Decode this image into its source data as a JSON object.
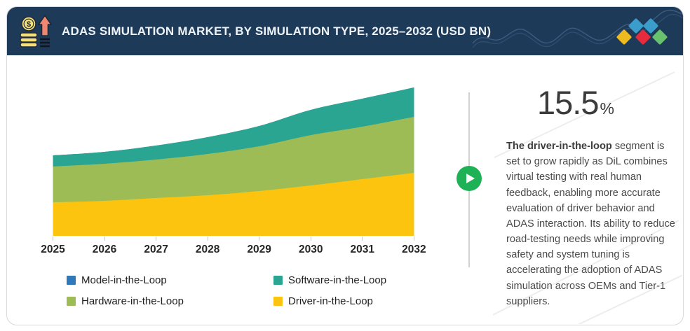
{
  "header": {
    "title": "ADAS SIMULATION MARKET, BY SIMULATION TYPE, 2025–2032 (USD BN)",
    "icon": "money-growth-icon",
    "background_color": "#1e3a59"
  },
  "brand": {
    "diamond_colors": [
      "#edba1f",
      "#3b9dcb",
      "#e52b3c",
      "#3b9dcb",
      "#69c06d"
    ]
  },
  "chart_data": {
    "type": "area",
    "stacked": true,
    "title": "ADAS Simulation Market, by Simulation Type, 2025-2032 (USD BN)",
    "categories": [
      "2025",
      "2026",
      "2027",
      "2028",
      "2029",
      "2030",
      "2031",
      "2032"
    ],
    "xlabel": "",
    "ylabel": "",
    "y_axis": "none shown; values estimated from pixel heights in relative units",
    "grid": false,
    "legend_position": "bottom",
    "series": [
      {
        "name": "Driver-in-the-Loop",
        "color": "#fdc40f",
        "values": [
          48,
          50,
          54,
          58,
          64,
          72,
          81,
          90
        ]
      },
      {
        "name": "Hardware-in-the-Loop",
        "color": "#9ebc56",
        "values": [
          51,
          53,
          55,
          59,
          64,
          72,
          75,
          80
        ]
      },
      {
        "name": "Software-in-the-Loop",
        "color": "#2aa592",
        "values": [
          16,
          17,
          20,
          24,
          29,
          36,
          40,
          42
        ]
      },
      {
        "name": "Model-in-the-Loop",
        "color": "#2f79ba",
        "values": [
          0,
          0,
          0,
          0,
          0,
          0,
          0,
          0
        ],
        "note": "listed in legend but band too thin to be visible in plot"
      }
    ]
  },
  "legend": {
    "items": [
      {
        "label": "Model-in-the-Loop",
        "color": "#2f79ba"
      },
      {
        "label": "Software-in-the-Loop",
        "color": "#2aa592"
      },
      {
        "label": "Hardware-in-the-Loop",
        "color": "#9ebc56"
      },
      {
        "label": "Driver-in-the-Loop",
        "color": "#fdc40f"
      }
    ]
  },
  "stat": {
    "value": "15.5",
    "suffix": "%"
  },
  "insight": {
    "bold": "The driver-in-the-loop",
    "rest": " segment is set to grow rapidly as DiL combines virtual testing with real human feedback, enabling more accurate evaluation of driver behavior and ADAS interaction. Its ability to reduce road-testing needs while improving safety and system tuning is accelerating the adoption of ADAS simulation across OEMs and Tier-1 suppliers."
  },
  "colors": {
    "play_button": "#1fb155",
    "divider": "#d2d2d2",
    "axis_tick": "#c9c9c9",
    "card_border": "#d9d9d9"
  }
}
